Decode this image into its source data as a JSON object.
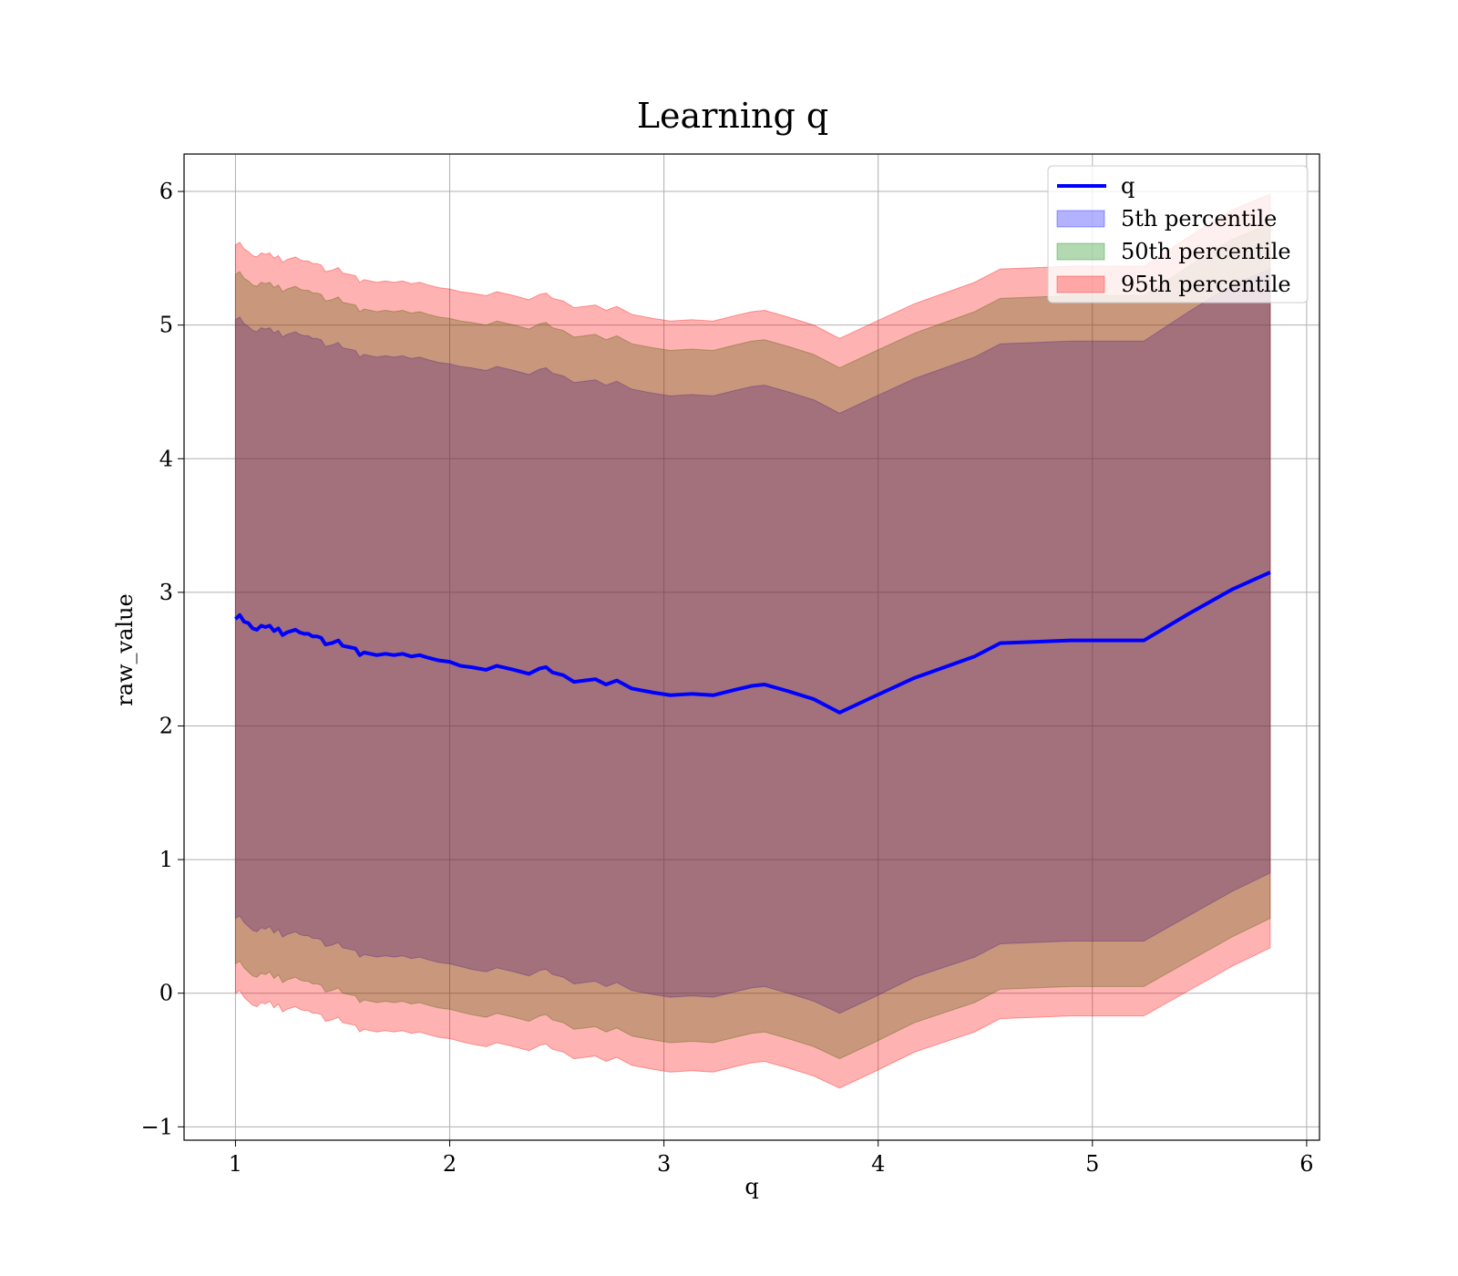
{
  "chart_data": {
    "type": "area",
    "title": "Learning q",
    "xlabel": "q",
    "ylabel": "raw_value",
    "xlim": [
      0.76,
      6.06
    ],
    "ylim": [
      -1.1,
      6.28
    ],
    "xticks": [
      1,
      2,
      3,
      4,
      5,
      6
    ],
    "yticks": [
      -1,
      0,
      1,
      2,
      3,
      4,
      5,
      6
    ],
    "xtick_labels": [
      "1",
      "2",
      "3",
      "4",
      "5",
      "6"
    ],
    "ytick_labels": [
      "−1",
      "0",
      "1",
      "2",
      "3",
      "4",
      "5",
      "6"
    ],
    "grid": true,
    "legend_position": "upper right",
    "legend": [
      {
        "label": "q",
        "kind": "line",
        "color": "#0000ff"
      },
      {
        "label": "5th percentile",
        "kind": "patch",
        "color": "#0000ff"
      },
      {
        "label": "50th percentile",
        "kind": "patch",
        "color": "#008000"
      },
      {
        "label": "95th percentile",
        "kind": "patch",
        "color": "#ff0000"
      }
    ],
    "x": [
      1.0,
      1.02,
      1.04,
      1.06,
      1.08,
      1.1,
      1.12,
      1.14,
      1.16,
      1.18,
      1.2,
      1.22,
      1.24,
      1.26,
      1.28,
      1.3,
      1.32,
      1.34,
      1.36,
      1.38,
      1.4,
      1.42,
      1.45,
      1.48,
      1.5,
      1.53,
      1.56,
      1.58,
      1.6,
      1.63,
      1.66,
      1.7,
      1.74,
      1.78,
      1.82,
      1.86,
      1.9,
      1.95,
      2.0,
      2.05,
      2.1,
      2.17,
      2.22,
      2.3,
      2.37,
      2.42,
      2.45,
      2.48,
      2.53,
      2.58,
      2.63,
      2.68,
      2.73,
      2.78,
      2.85,
      2.95,
      3.03,
      3.13,
      3.23,
      3.33,
      3.41,
      3.47,
      3.58,
      3.7,
      3.82,
      3.98,
      4.17,
      4.45,
      4.57,
      4.9,
      5.24,
      5.45,
      5.65,
      5.83
    ],
    "series": [
      {
        "name": "q",
        "role": "line",
        "color": "#0000ff",
        "y": [
          2.8,
          2.83,
          2.78,
          2.77,
          2.73,
          2.72,
          2.75,
          2.74,
          2.75,
          2.71,
          2.73,
          2.68,
          2.7,
          2.71,
          2.72,
          2.7,
          2.69,
          2.69,
          2.67,
          2.67,
          2.66,
          2.61,
          2.62,
          2.64,
          2.6,
          2.59,
          2.58,
          2.53,
          2.55,
          2.54,
          2.53,
          2.54,
          2.53,
          2.54,
          2.52,
          2.53,
          2.51,
          2.49,
          2.48,
          2.45,
          2.44,
          2.42,
          2.45,
          2.42,
          2.39,
          2.43,
          2.44,
          2.4,
          2.38,
          2.33,
          2.34,
          2.35,
          2.31,
          2.34,
          2.28,
          2.25,
          2.23,
          2.24,
          2.23,
          2.27,
          2.3,
          2.31,
          2.26,
          2.2,
          2.1,
          2.22,
          2.36,
          2.52,
          2.62,
          2.64,
          2.64,
          2.84,
          3.02,
          3.15
        ]
      },
      {
        "name": "5th percentile",
        "role": "band",
        "color": "#0000ff",
        "lower": [
          0.56,
          0.58,
          0.53,
          0.5,
          0.47,
          0.46,
          0.49,
          0.48,
          0.5,
          0.45,
          0.48,
          0.42,
          0.44,
          0.45,
          0.46,
          0.44,
          0.43,
          0.43,
          0.41,
          0.41,
          0.4,
          0.35,
          0.36,
          0.38,
          0.34,
          0.33,
          0.32,
          0.27,
          0.29,
          0.28,
          0.27,
          0.28,
          0.27,
          0.28,
          0.26,
          0.27,
          0.25,
          0.23,
          0.22,
          0.2,
          0.18,
          0.16,
          0.19,
          0.16,
          0.13,
          0.17,
          0.18,
          0.14,
          0.12,
          0.07,
          0.08,
          0.09,
          0.05,
          0.08,
          0.02,
          -0.01,
          -0.03,
          -0.02,
          -0.03,
          0.01,
          0.04,
          0.05,
          0.0,
          -0.06,
          -0.15,
          -0.03,
          0.12,
          0.27,
          0.37,
          0.39,
          0.39,
          0.58,
          0.76,
          0.9
        ],
        "upper": [
          5.04,
          5.06,
          5.01,
          4.99,
          4.96,
          4.95,
          4.98,
          4.97,
          4.98,
          4.94,
          4.96,
          4.91,
          4.93,
          4.94,
          4.95,
          4.93,
          4.92,
          4.92,
          4.9,
          4.9,
          4.89,
          4.84,
          4.85,
          4.87,
          4.83,
          4.82,
          4.81,
          4.76,
          4.78,
          4.77,
          4.76,
          4.77,
          4.76,
          4.77,
          4.75,
          4.76,
          4.74,
          4.72,
          4.71,
          4.69,
          4.68,
          4.66,
          4.69,
          4.66,
          4.63,
          4.67,
          4.68,
          4.64,
          4.62,
          4.57,
          4.58,
          4.59,
          4.55,
          4.58,
          4.52,
          4.49,
          4.47,
          4.48,
          4.47,
          4.51,
          4.54,
          4.55,
          4.5,
          4.44,
          4.34,
          4.46,
          4.6,
          4.76,
          4.86,
          4.88,
          4.88,
          5.1,
          5.3,
          5.42
        ]
      },
      {
        "name": "50th percentile",
        "role": "band",
        "color": "#008000",
        "lower": [
          0.22,
          0.24,
          0.19,
          0.16,
          0.13,
          0.12,
          0.15,
          0.14,
          0.16,
          0.11,
          0.14,
          0.08,
          0.1,
          0.11,
          0.12,
          0.1,
          0.09,
          0.09,
          0.07,
          0.07,
          0.06,
          0.01,
          0.02,
          0.04,
          0.0,
          -0.01,
          -0.02,
          -0.07,
          -0.05,
          -0.06,
          -0.07,
          -0.06,
          -0.07,
          -0.06,
          -0.08,
          -0.07,
          -0.09,
          -0.11,
          -0.12,
          -0.14,
          -0.16,
          -0.18,
          -0.15,
          -0.18,
          -0.21,
          -0.17,
          -0.16,
          -0.2,
          -0.22,
          -0.27,
          -0.26,
          -0.25,
          -0.29,
          -0.26,
          -0.32,
          -0.35,
          -0.37,
          -0.36,
          -0.37,
          -0.33,
          -0.3,
          -0.29,
          -0.34,
          -0.4,
          -0.49,
          -0.37,
          -0.22,
          -0.07,
          0.03,
          0.05,
          0.05,
          0.24,
          0.42,
          0.56
        ],
        "upper": [
          5.38,
          5.4,
          5.35,
          5.33,
          5.3,
          5.29,
          5.32,
          5.31,
          5.32,
          5.28,
          5.3,
          5.25,
          5.27,
          5.28,
          5.29,
          5.27,
          5.26,
          5.26,
          5.24,
          5.24,
          5.23,
          5.18,
          5.19,
          5.21,
          5.17,
          5.16,
          5.15,
          5.1,
          5.12,
          5.11,
          5.1,
          5.11,
          5.1,
          5.11,
          5.09,
          5.1,
          5.08,
          5.06,
          5.05,
          5.03,
          5.02,
          5.0,
          5.03,
          5.0,
          4.97,
          5.01,
          5.02,
          4.98,
          4.96,
          4.91,
          4.92,
          4.93,
          4.89,
          4.92,
          4.86,
          4.83,
          4.81,
          4.82,
          4.81,
          4.85,
          4.88,
          4.89,
          4.84,
          4.78,
          4.68,
          4.8,
          4.94,
          5.1,
          5.2,
          5.22,
          5.22,
          5.44,
          5.64,
          5.76
        ]
      },
      {
        "name": "95th percentile",
        "role": "band",
        "color": "#ff0000",
        "lower": [
          0.0,
          0.02,
          -0.03,
          -0.06,
          -0.09,
          -0.1,
          -0.07,
          -0.08,
          -0.06,
          -0.11,
          -0.08,
          -0.14,
          -0.12,
          -0.11,
          -0.1,
          -0.12,
          -0.13,
          -0.13,
          -0.15,
          -0.15,
          -0.16,
          -0.21,
          -0.2,
          -0.18,
          -0.22,
          -0.23,
          -0.24,
          -0.29,
          -0.27,
          -0.28,
          -0.29,
          -0.28,
          -0.29,
          -0.28,
          -0.3,
          -0.29,
          -0.31,
          -0.33,
          -0.34,
          -0.36,
          -0.38,
          -0.4,
          -0.37,
          -0.4,
          -0.43,
          -0.39,
          -0.38,
          -0.42,
          -0.44,
          -0.49,
          -0.48,
          -0.47,
          -0.51,
          -0.48,
          -0.54,
          -0.57,
          -0.59,
          -0.58,
          -0.59,
          -0.55,
          -0.52,
          -0.51,
          -0.56,
          -0.62,
          -0.71,
          -0.59,
          -0.44,
          -0.29,
          -0.19,
          -0.17,
          -0.17,
          0.02,
          0.2,
          0.34
        ],
        "upper": [
          5.6,
          5.62,
          5.57,
          5.55,
          5.52,
          5.51,
          5.54,
          5.53,
          5.54,
          5.5,
          5.52,
          5.47,
          5.49,
          5.5,
          5.51,
          5.49,
          5.48,
          5.48,
          5.46,
          5.46,
          5.45,
          5.4,
          5.41,
          5.43,
          5.39,
          5.38,
          5.37,
          5.32,
          5.34,
          5.33,
          5.32,
          5.33,
          5.32,
          5.33,
          5.31,
          5.32,
          5.3,
          5.28,
          5.27,
          5.25,
          5.24,
          5.22,
          5.25,
          5.22,
          5.19,
          5.23,
          5.24,
          5.2,
          5.18,
          5.13,
          5.14,
          5.15,
          5.11,
          5.14,
          5.08,
          5.05,
          5.03,
          5.04,
          5.03,
          5.07,
          5.1,
          5.11,
          5.06,
          5.0,
          4.9,
          5.02,
          5.16,
          5.32,
          5.42,
          5.44,
          5.44,
          5.66,
          5.86,
          5.98
        ]
      }
    ]
  }
}
